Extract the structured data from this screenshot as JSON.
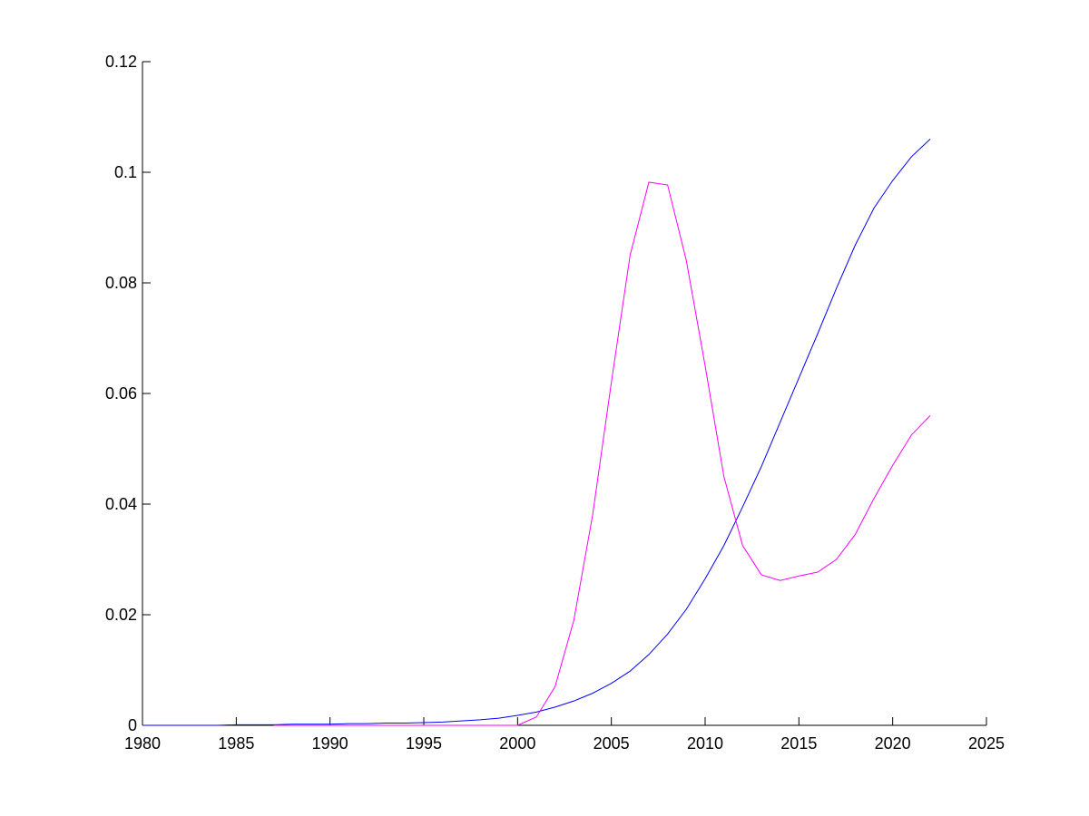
{
  "chart_data": {
    "type": "line",
    "x": [
      1980,
      1981,
      1982,
      1983,
      1984,
      1985,
      1986,
      1987,
      1988,
      1989,
      1990,
      1991,
      1992,
      1993,
      1994,
      1995,
      1996,
      1997,
      1998,
      1999,
      2000,
      2001,
      2002,
      2003,
      2004,
      2005,
      2006,
      2007,
      2008,
      2009,
      2010,
      2011,
      2012,
      2013,
      2014,
      2015,
      2016,
      2017,
      2018,
      2019,
      2020,
      2021,
      2022
    ],
    "series": [
      {
        "color": "#0000ff",
        "values": [
          0,
          0,
          0,
          0,
          0,
          0.0001,
          0.0001,
          0.0001,
          0.0002,
          0.0002,
          0.0002,
          0.0003,
          0.0003,
          0.0004,
          0.0004,
          0.0005,
          0.0006,
          0.0008,
          0.001,
          0.0013,
          0.0018,
          0.0024,
          0.0033,
          0.0044,
          0.0058,
          0.0076,
          0.0098,
          0.0128,
          0.0165,
          0.021,
          0.0265,
          0.0325,
          0.0395,
          0.0468,
          0.0548,
          0.0628,
          0.0708,
          0.079,
          0.0868,
          0.0935,
          0.0985,
          0.1028,
          0.106
        ]
      },
      {
        "color": "#ff00ff",
        "values": [
          null,
          null,
          null,
          null,
          null,
          null,
          null,
          0,
          0,
          0,
          0,
          0,
          0,
          0,
          0,
          0,
          0,
          0,
          0,
          0,
          0,
          0.0015,
          0.007,
          0.019,
          0.038,
          0.062,
          0.085,
          0.0982,
          0.0977,
          0.084,
          0.065,
          0.045,
          0.0325,
          0.0272,
          0.0262,
          0.027,
          0.0277,
          0.03,
          0.0345,
          0.041,
          0.047,
          0.0525,
          0.056
        ]
      }
    ],
    "xlim": [
      1980,
      2025
    ],
    "xticks": [
      1980,
      1985,
      1990,
      1995,
      2000,
      2005,
      2010,
      2015,
      2020,
      2025
    ],
    "ylim": [
      0,
      0.12
    ],
    "yticks": [
      0,
      0.02,
      0.04,
      0.06,
      0.08,
      0.1,
      0.12
    ]
  }
}
